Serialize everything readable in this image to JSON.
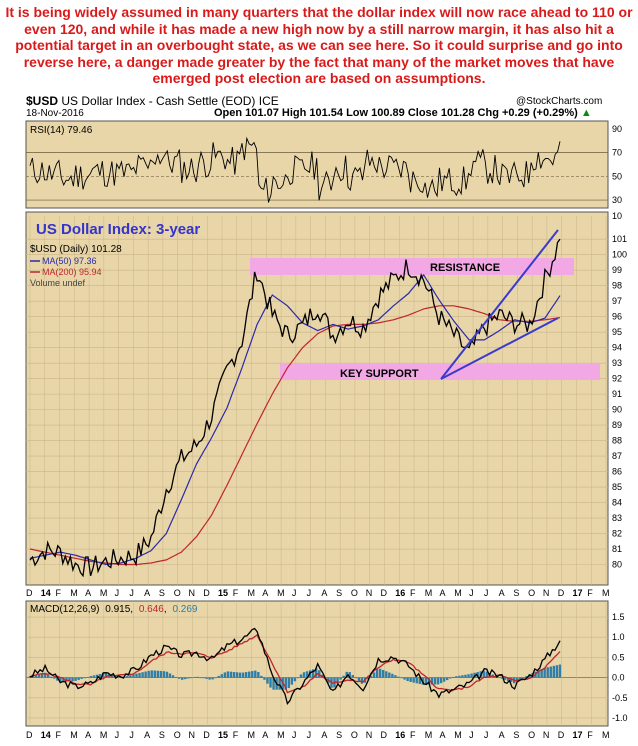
{
  "commentary": "It is being widely assumed in many quarters that the dollar index will now race ahead to 110 or even 120, and while it has made a new high now by a still narrow margin, it has also hit a potential target in an overbought state, as we can see here. So it could surprise and go into reverse here, a danger made greater by the fact that many of the market moves that have emerged post election are based on assumptions.",
  "header": {
    "symbol": "$USD",
    "name": "US Dollar Index - Cash Settle (EOD)",
    "exchange": "ICE",
    "date": "18-Nov-2016",
    "watermark": "@StockCharts.com",
    "ohlc": "Open 101.07   High 101.54   Low 100.89   Close 101.28   Chg +0.29 (+0.29%)",
    "chg_up": "▲"
  },
  "colors": {
    "panel_bg": "#e8d5a8",
    "price": "#000000",
    "ma50": "#2a2aa8",
    "ma200": "#c0262c",
    "zone": "#f2a8e4",
    "trendline": "#3a3acd",
    "title": "#3434cc",
    "macd_hist": "#2e7ea8"
  },
  "rsi_legend": "RSI(14) 79.46",
  "main_title": "US Dollar Index: 3-year",
  "legend": {
    "price": "$USD (Daily) 101.28",
    "ma50": "MA(50) 97.36",
    "ma200": "MA(200) 95.94",
    "volume": "Volume undef"
  },
  "annotations": {
    "resistance": "RESISTANCE",
    "support": "KEY SUPPORT"
  },
  "macd_legend": {
    "prefix": "MACD(12,26,9)",
    "macd": "0.915",
    "signal": "0.646",
    "hist": "0.269"
  },
  "chart_data": [
    {
      "type": "line",
      "panel": "RSI(14)",
      "y_ticks": [
        30,
        50,
        70,
        90
      ],
      "ylim": [
        25,
        95
      ],
      "reference_lines": [
        30,
        50,
        70
      ],
      "last_value": 79.46
    },
    {
      "type": "line",
      "panel": "price",
      "x_tick_labels": [
        "D",
        "14",
        "F",
        "M",
        "A",
        "M",
        "J",
        "J",
        "A",
        "S",
        "O",
        "N",
        "D",
        "15",
        "F",
        "M",
        "A",
        "M",
        "J",
        "J",
        "A",
        "S",
        "O",
        "N",
        "D",
        "16",
        "F",
        "M",
        "A",
        "M",
        "J",
        "J",
        "A",
        "S",
        "O",
        "N",
        "D",
        "17",
        "F",
        "M"
      ],
      "y_ticks": [
        80,
        81,
        82,
        83,
        84,
        85,
        86,
        87,
        88,
        89,
        90,
        91,
        92,
        93,
        94,
        95,
        96,
        97,
        98,
        99,
        100,
        101
      ],
      "extra_tick": 10,
      "ylim": [
        79,
        102.5
      ],
      "series": [
        {
          "name": "$USD",
          "values": [
            80.3,
            80.9,
            80.8,
            80.0,
            79.8,
            80.2,
            80.4,
            80.6,
            81.7,
            84.9,
            86.8,
            87.7,
            89.6,
            92.5,
            94.5,
            99.0,
            96.1,
            94.8,
            95.4,
            96.7,
            94.8,
            95.8,
            95.3,
            97.3,
            98.4,
            99.3,
            98.4,
            96.0,
            94.8,
            93.6,
            95.3,
            96.1,
            95.6,
            95.5,
            98.4,
            101.0
          ]
        },
        {
          "name": "MA(50)",
          "values": [
            80.4,
            80.6,
            80.8,
            80.6,
            80.3,
            80.0,
            80.1,
            80.4,
            80.9,
            82.0,
            84.2,
            86.5,
            88.2,
            90.1,
            92.7,
            95.5,
            97.4,
            96.7,
            95.6,
            95.1,
            95.5,
            95.2,
            95.4,
            95.8,
            96.7,
            97.5,
            98.7,
            97.1,
            95.7,
            94.5,
            94.5,
            95.1,
            95.8,
            95.6,
            95.9,
            97.36
          ]
        },
        {
          "name": "MA(200)",
          "values": [
            81.0,
            80.8,
            80.6,
            80.4,
            80.2,
            80.1,
            80.0,
            80.0,
            80.1,
            80.3,
            80.8,
            81.8,
            83.2,
            85.1,
            87.1,
            89.1,
            91.0,
            92.7,
            94.0,
            94.9,
            95.4,
            95.5,
            95.5,
            95.6,
            95.8,
            96.1,
            96.5,
            96.7,
            96.7,
            96.5,
            96.2,
            95.8,
            95.7,
            95.7,
            95.8,
            95.94
          ]
        }
      ],
      "last_close": 101.28
    },
    {
      "type": "line",
      "panel": "MACD(12,26,9)",
      "y_ticks": [
        -1.0,
        -0.5,
        0.0,
        0.5,
        1.0,
        1.5
      ],
      "ylim": [
        -1.1,
        1.6
      ],
      "x_tick_labels": [
        "D",
        "14",
        "F",
        "M",
        "A",
        "M",
        "J",
        "J",
        "A",
        "S",
        "O",
        "N",
        "D",
        "15",
        "F",
        "M",
        "A",
        "M",
        "J",
        "J",
        "A",
        "S",
        "O",
        "N",
        "D",
        "16",
        "F",
        "M",
        "A",
        "M",
        "J",
        "J",
        "A",
        "S",
        "O",
        "N",
        "D",
        "17",
        "F",
        "M"
      ],
      "series": [
        {
          "name": "MACD",
          "values": [
            0.05,
            0.22,
            -0.1,
            -0.22,
            -0.15,
            0.12,
            0.05,
            0.2,
            0.55,
            0.75,
            0.55,
            0.62,
            0.45,
            0.78,
            0.95,
            1.2,
            0.1,
            -0.6,
            -0.15,
            0.3,
            -0.4,
            0.1,
            -0.25,
            0.45,
            0.52,
            0.3,
            -0.1,
            -0.42,
            -0.3,
            -0.15,
            0.15,
            0.05,
            -0.2,
            0.05,
            0.45,
            0.915
          ]
        },
        {
          "name": "Signal",
          "values": [
            0.02,
            0.12,
            0.0,
            -0.15,
            -0.18,
            0.02,
            0.05,
            0.12,
            0.4,
            0.62,
            0.6,
            0.6,
            0.5,
            0.65,
            0.85,
            1.05,
            0.35,
            -0.35,
            -0.25,
            0.1,
            -0.15,
            -0.05,
            -0.1,
            0.25,
            0.45,
            0.38,
            0.05,
            -0.28,
            -0.32,
            -0.22,
            0.0,
            0.05,
            -0.08,
            -0.02,
            0.25,
            0.646
          ]
        }
      ],
      "histogram_last": 0.269
    }
  ]
}
